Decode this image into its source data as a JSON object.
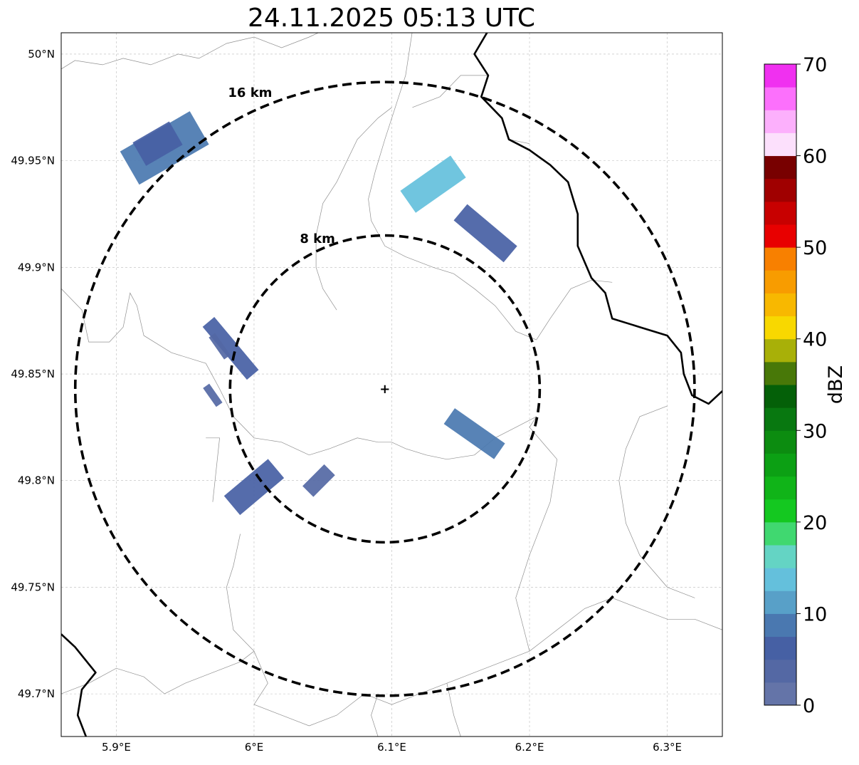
{
  "map": {
    "title": "24.11.2025 05:13 UTC",
    "extent": {
      "lon": [
        5.86,
        6.34
      ],
      "lat": [
        49.68,
        50.01
      ]
    },
    "radar_site": {
      "lon": 6.095,
      "lat": 49.843
    },
    "lon_ticks": [
      {
        "value": 5.9,
        "label": "5.9°E"
      },
      {
        "value": 6.0,
        "label": "6°E"
      },
      {
        "value": 6.1,
        "label": "6.1°E"
      },
      {
        "value": 6.2,
        "label": "6.2°E"
      },
      {
        "value": 6.3,
        "label": "6.3°E"
      }
    ],
    "lat_ticks": [
      {
        "value": 50.0,
        "label": "50°N"
      },
      {
        "value": 49.95,
        "label": "49.95°N"
      },
      {
        "value": 49.9,
        "label": "49.9°N"
      },
      {
        "value": 49.85,
        "label": "49.85°N"
      },
      {
        "value": 49.8,
        "label": "49.8°N"
      },
      {
        "value": 49.75,
        "label": "49.75°N"
      },
      {
        "value": 49.7,
        "label": "49.7°N"
      }
    ],
    "range_rings": [
      {
        "radius_km": 8,
        "label": "8 km"
      },
      {
        "radius_km": 16,
        "label": "16 km"
      }
    ],
    "gridlines": true
  },
  "colorbar": {
    "label": "dBZ",
    "min": 0,
    "max": 70,
    "tick_labels": [
      "0",
      "10",
      "20",
      "30",
      "40",
      "50",
      "60",
      "70"
    ],
    "colors": [
      "#6474a8",
      "#5468a4",
      "#4660a4",
      "#4a78b0",
      "#58a0c8",
      "#64c0dc",
      "#64d4c4",
      "#40d870",
      "#14c820",
      "#10b418",
      "#0ca014",
      "#0c8c10",
      "#087810",
      "#046008",
      "#487808",
      "#a8b008",
      "#f8d800",
      "#f8b800",
      "#f89c00",
      "#f88000",
      "#e80000",
      "#c80000",
      "#a00000",
      "#780000",
      "#fce0fc",
      "#fcb0fc",
      "#fc70fc",
      "#f030f0"
    ]
  },
  "echoes": [
    {
      "lon": 5.935,
      "lat": 49.956,
      "dbz": 9,
      "angle": -30,
      "len_km": 4.2,
      "wid_km": 2.0
    },
    {
      "lon": 5.93,
      "lat": 49.958,
      "dbz": 6,
      "angle": -30,
      "len_km": 2.2,
      "wid_km": 1.4
    },
    {
      "lon": 6.13,
      "lat": 49.939,
      "dbz": 13,
      "angle": -35,
      "len_km": 3.2,
      "wid_km": 1.4
    },
    {
      "lon": 6.168,
      "lat": 49.916,
      "dbz": 7,
      "angle": 40,
      "len_km": 3.4,
      "wid_km": 1.1
    },
    {
      "lon": 5.983,
      "lat": 49.862,
      "dbz": 7,
      "angle": 50,
      "len_km": 3.6,
      "wid_km": 0.8
    },
    {
      "lon": 5.975,
      "lat": 49.863,
      "dbz": 4,
      "angle": 55,
      "len_km": 1.4,
      "wid_km": 0.4
    },
    {
      "lon": 5.97,
      "lat": 49.84,
      "dbz": 4,
      "angle": 55,
      "len_km": 1.2,
      "wid_km": 0.4
    },
    {
      "lon": 6.16,
      "lat": 49.822,
      "dbz": 8,
      "angle": 35,
      "len_km": 3.2,
      "wid_km": 1.0
    },
    {
      "lon": 6.0,
      "lat": 49.797,
      "dbz": 6,
      "angle": -40,
      "len_km": 3.0,
      "wid_km": 1.3
    },
    {
      "lon": 6.047,
      "lat": 49.8,
      "dbz": 4,
      "angle": -45,
      "len_km": 1.6,
      "wid_km": 0.8
    }
  ],
  "lines": {
    "borders": [
      [
        [
          6.17,
          50.011
        ],
        [
          6.16,
          50.0
        ],
        [
          6.17,
          49.99
        ],
        [
          6.165,
          49.98
        ],
        [
          6.18,
          49.97
        ],
        [
          6.185,
          49.96
        ],
        [
          6.2,
          49.955
        ],
        [
          6.215,
          49.948
        ],
        [
          6.228,
          49.94
        ],
        [
          6.235,
          49.925
        ],
        [
          6.235,
          49.91
        ],
        [
          6.245,
          49.895
        ],
        [
          6.255,
          49.888
        ],
        [
          6.26,
          49.876
        ],
        [
          6.28,
          49.872
        ],
        [
          6.3,
          49.868
        ],
        [
          6.31,
          49.86
        ],
        [
          6.312,
          49.85
        ],
        [
          6.318,
          49.84
        ],
        [
          6.33,
          49.836
        ],
        [
          6.34,
          49.842
        ]
      ],
      [
        [
          5.86,
          49.728
        ],
        [
          5.87,
          49.722
        ],
        [
          5.885,
          49.71
        ],
        [
          5.875,
          49.702
        ],
        [
          5.872,
          49.69
        ],
        [
          5.878,
          49.68
        ]
      ]
    ],
    "admin": [
      [
        [
          5.86,
          49.993
        ],
        [
          5.87,
          49.997
        ],
        [
          5.89,
          49.995
        ],
        [
          5.905,
          49.998
        ],
        [
          5.925,
          49.995
        ],
        [
          5.945,
          50.0
        ],
        [
          5.96,
          49.998
        ],
        [
          5.98,
          50.005
        ],
        [
          6.0,
          50.008
        ],
        [
          6.02,
          50.003
        ],
        [
          6.04,
          50.008
        ],
        [
          6.05,
          50.011
        ]
      ],
      [
        [
          6.115,
          50.011
        ],
        [
          6.11,
          49.99
        ],
        [
          6.105,
          49.98
        ],
        [
          6.1,
          49.97
        ],
        [
          6.095,
          49.96
        ],
        [
          6.088,
          49.945
        ],
        [
          6.083,
          49.932
        ],
        [
          6.085,
          49.922
        ],
        [
          6.095,
          49.91
        ],
        [
          6.11,
          49.905
        ],
        [
          6.13,
          49.9
        ],
        [
          6.145,
          49.897
        ],
        [
          6.16,
          49.89
        ],
        [
          6.175,
          49.882
        ],
        [
          6.19,
          49.87
        ],
        [
          6.205,
          49.866
        ]
      ],
      [
        [
          6.115,
          49.975
        ],
        [
          6.135,
          49.98
        ],
        [
          6.15,
          49.99
        ],
        [
          6.17,
          49.99
        ]
      ],
      [
        [
          6.185,
          49.96
        ],
        [
          6.2,
          49.958
        ]
      ],
      [
        [
          6.205,
          49.866
        ],
        [
          6.215,
          49.876
        ],
        [
          6.23,
          49.89
        ],
        [
          6.245,
          49.894
        ],
        [
          6.26,
          49.893
        ]
      ],
      [
        [
          6.1,
          49.975
        ],
        [
          6.09,
          49.97
        ],
        [
          6.075,
          49.96
        ],
        [
          6.06,
          49.94
        ],
        [
          6.05,
          49.93
        ],
        [
          6.045,
          49.915
        ],
        [
          6.045,
          49.9
        ],
        [
          6.05,
          49.89
        ],
        [
          6.06,
          49.88
        ]
      ],
      [
        [
          5.86,
          49.89
        ],
        [
          5.875,
          49.88
        ],
        [
          5.88,
          49.865
        ],
        [
          5.895,
          49.865
        ],
        [
          5.905,
          49.872
        ],
        [
          5.91,
          49.888
        ],
        [
          5.915,
          49.882
        ],
        [
          5.92,
          49.868
        ],
        [
          5.94,
          49.86
        ],
        [
          5.965,
          49.855
        ],
        [
          5.975,
          49.843
        ],
        [
          5.985,
          49.83
        ],
        [
          6.0,
          49.82
        ],
        [
          6.02,
          49.818
        ],
        [
          6.04,
          49.812
        ],
        [
          6.055,
          49.815
        ],
        [
          6.075,
          49.82
        ],
        [
          6.09,
          49.818
        ],
        [
          6.1,
          49.818
        ],
        [
          6.11,
          49.815
        ],
        [
          6.125,
          49.812
        ],
        [
          6.14,
          49.81
        ],
        [
          6.16,
          49.812
        ],
        [
          6.175,
          49.82
        ],
        [
          6.19,
          49.825
        ],
        [
          6.205,
          49.83
        ]
      ],
      [
        [
          5.97,
          49.79
        ],
        [
          5.975,
          49.82
        ],
        [
          5.965,
          49.82
        ]
      ],
      [
        [
          5.99,
          49.775
        ],
        [
          5.985,
          49.76
        ],
        [
          5.98,
          49.75
        ],
        [
          5.985,
          49.73
        ],
        [
          6.0,
          49.72
        ],
        [
          6.01,
          49.705
        ],
        [
          6.0,
          49.695
        ],
        [
          6.02,
          49.69
        ],
        [
          6.04,
          49.685
        ]
      ],
      [
        [
          5.86,
          49.7
        ],
        [
          5.88,
          49.705
        ],
        [
          5.9,
          49.712
        ],
        [
          5.92,
          49.708
        ],
        [
          5.935,
          49.7
        ],
        [
          5.95,
          49.705
        ],
        [
          5.97,
          49.71
        ],
        [
          5.99,
          49.715
        ],
        [
          6.0,
          49.72
        ]
      ],
      [
        [
          6.04,
          49.685
        ],
        [
          6.06,
          49.69
        ],
        [
          6.08,
          49.7
        ],
        [
          6.1,
          49.695
        ],
        [
          6.12,
          49.7
        ],
        [
          6.14,
          49.705
        ],
        [
          6.16,
          49.71
        ],
        [
          6.18,
          49.715
        ],
        [
          6.2,
          49.72
        ],
        [
          6.22,
          49.73
        ],
        [
          6.24,
          49.74
        ],
        [
          6.26,
          49.745
        ],
        [
          6.28,
          49.74
        ],
        [
          6.3,
          49.735
        ],
        [
          6.32,
          49.735
        ],
        [
          6.34,
          49.73
        ]
      ],
      [
        [
          6.2,
          49.72
        ],
        [
          6.19,
          49.745
        ],
        [
          6.2,
          49.765
        ],
        [
          6.215,
          49.79
        ],
        [
          6.22,
          49.81
        ],
        [
          6.2,
          49.825
        ],
        [
          6.205,
          49.83
        ]
      ],
      [
        [
          6.3,
          49.835
        ],
        [
          6.28,
          49.83
        ],
        [
          6.27,
          49.815
        ],
        [
          6.265,
          49.8
        ],
        [
          6.27,
          49.78
        ],
        [
          6.28,
          49.765
        ],
        [
          6.3,
          49.75
        ],
        [
          6.32,
          49.745
        ]
      ],
      [
        [
          6.09,
          49.7
        ],
        [
          6.085,
          49.69
        ],
        [
          6.09,
          49.68
        ]
      ],
      [
        [
          6.14,
          49.705
        ],
        [
          6.145,
          49.69
        ],
        [
          6.15,
          49.68
        ]
      ]
    ]
  }
}
